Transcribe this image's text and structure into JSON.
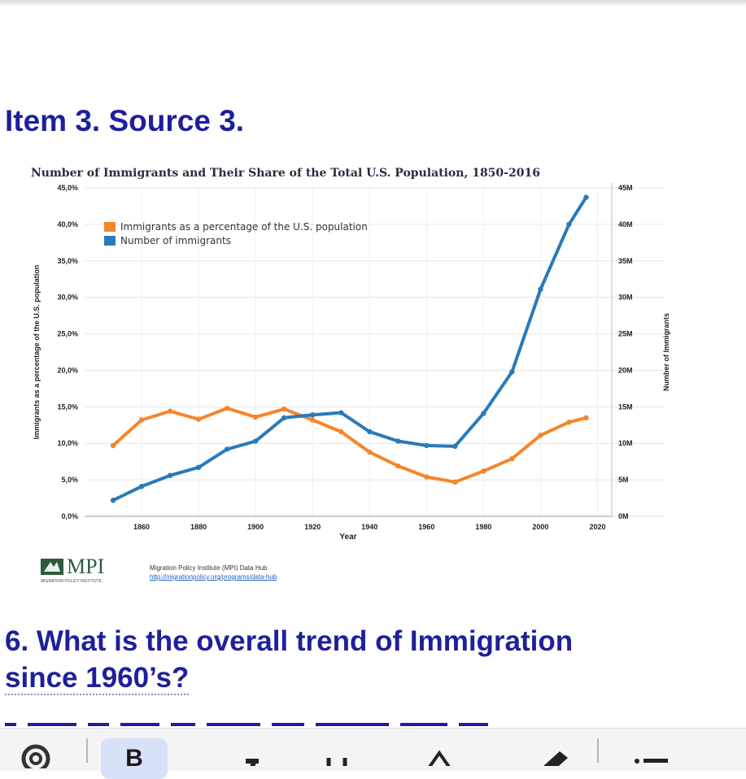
{
  "heading": "Item 3.  Source 3.",
  "question": {
    "line1": "6. What is the overall trend of Immigration",
    "line2": "since 1960’s?"
  },
  "source": {
    "logo_text": "MPI",
    "logo_subtext": "MIGRATION POLICY INSTITUTE",
    "credit": "Migration Policy Institute (MPI) Data Hub",
    "link": "http://migrationpolicy.org/programs/data-hub"
  },
  "colors": {
    "heading": "#1f1f9c",
    "share_series": "#f5862a",
    "count_series": "#2a7ab8"
  },
  "toolbar": {
    "bold_label": "B",
    "icons": [
      "link-icon",
      "bold-icon",
      "italic-icon",
      "underline-icon",
      "text-color-icon",
      "highlighter-icon",
      "list-icon"
    ]
  },
  "chart_data": {
    "type": "line",
    "title": "Number of Immigrants and Their Share of the Total U.S. Population, 1850-2016",
    "xlabel": "Year",
    "ylabel_left": "Immigrants as a percentage of the U.S. population",
    "ylabel_right": "Number of Immigrants",
    "xlim": [
      1840,
      2025
    ],
    "x_ticks": [
      "1860",
      "1880",
      "1900",
      "1920",
      "1940",
      "1960",
      "1980",
      "2000",
      "2020"
    ],
    "x_tick_values": [
      1860,
      1880,
      1900,
      1920,
      1940,
      1960,
      1980,
      2000,
      2020
    ],
    "left_ylim": [
      0,
      45
    ],
    "left_ticks": [
      "0,0%",
      "5,0%",
      "10,0%",
      "15,0%",
      "20,0%",
      "25,0%",
      "30,0%",
      "35,0%",
      "40,0%",
      "45,0%"
    ],
    "left_tick_values": [
      0,
      5,
      10,
      15,
      20,
      25,
      30,
      35,
      40,
      45
    ],
    "right_ylim": [
      0,
      45
    ],
    "right_ticks": [
      "0M",
      "5M",
      "10M",
      "15M",
      "20M",
      "25M",
      "30M",
      "35M",
      "40M",
      "45M"
    ],
    "right_tick_values": [
      0,
      5,
      10,
      15,
      20,
      25,
      30,
      35,
      40,
      45
    ],
    "grid": true,
    "legend_position": "top-left",
    "x": [
      1850,
      1860,
      1870,
      1880,
      1890,
      1900,
      1910,
      1920,
      1930,
      1940,
      1950,
      1960,
      1970,
      1980,
      1990,
      2000,
      2010,
      2016
    ],
    "series": [
      {
        "name": "Immigrants as a percentage of the U.S. population",
        "axis": "left",
        "color": "#f5862a",
        "values": [
          9.7,
          13.2,
          14.4,
          13.3,
          14.8,
          13.6,
          14.7,
          13.2,
          11.6,
          8.8,
          6.9,
          5.4,
          4.7,
          6.2,
          7.9,
          11.1,
          12.9,
          13.5
        ]
      },
      {
        "name": "Number of immigrants",
        "axis": "right",
        "color": "#2a7ab8",
        "values": [
          2.2,
          4.1,
          5.6,
          6.7,
          9.2,
          10.3,
          13.5,
          13.9,
          14.2,
          11.6,
          10.3,
          9.7,
          9.6,
          14.1,
          19.8,
          31.1,
          40.0,
          43.7
        ]
      }
    ]
  }
}
